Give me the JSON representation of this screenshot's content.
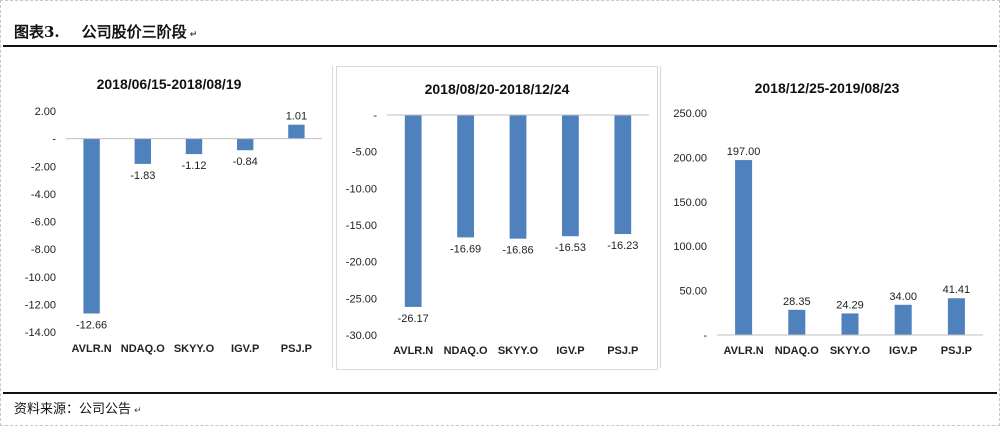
{
  "figure": {
    "number": "图表3.",
    "title": "公司股价三阶段",
    "source": "资料来源：公司公告"
  },
  "chart_data": [
    {
      "type": "bar",
      "title": "2018/06/15-2018/08/19",
      "categories": [
        "AVLR.N",
        "NDAQ.O",
        "SKYY.O",
        "IGV.P",
        "PSJ.P"
      ],
      "values": [
        -12.66,
        -1.83,
        -1.12,
        -0.84,
        1.01
      ],
      "value_labels": [
        "-12.66",
        "-1.83",
        "-1.12",
        "-0.84",
        "1.01"
      ],
      "ylim": [
        -14,
        2
      ],
      "ticks": [
        2,
        0,
        -2,
        -4,
        -6,
        -8,
        -10,
        -12,
        -14
      ],
      "tick_labels": [
        "2.00",
        "-",
        "-2.00",
        "-4.00",
        "-6.00",
        "-8.00",
        "-10.00",
        "-12.00",
        "-14.00"
      ],
      "color": "#4f81bd",
      "grid": false
    },
    {
      "type": "bar",
      "title": "2018/08/20-2018/12/24",
      "categories": [
        "AVLR.N",
        "NDAQ.O",
        "SKYY.O",
        "IGV.P",
        "PSJ.P"
      ],
      "values": [
        -26.17,
        -16.69,
        -16.86,
        -16.53,
        -16.23
      ],
      "value_labels": [
        "-26.17",
        "-16.69",
        "-16.86",
        "-16.53",
        "-16.23"
      ],
      "ylim": [
        -30,
        0
      ],
      "ticks": [
        0,
        -5,
        -10,
        -15,
        -20,
        -25,
        -30
      ],
      "tick_labels": [
        "-",
        "-5.00",
        "-10.00",
        "-15.00",
        "-20.00",
        "-25.00",
        "-30.00"
      ],
      "color": "#4f81bd",
      "grid": false
    },
    {
      "type": "bar",
      "title": "2018/12/25-2019/08/23",
      "categories": [
        "AVLR.N",
        "NDAQ.O",
        "SKYY.O",
        "IGV.P",
        "PSJ.P"
      ],
      "values": [
        197.0,
        28.35,
        24.29,
        34.0,
        41.41
      ],
      "value_labels": [
        "197.00",
        "28.35",
        "24.29",
        "34.00",
        "41.41"
      ],
      "ylim": [
        0,
        250
      ],
      "ticks": [
        250,
        200,
        150,
        100,
        50,
        0
      ],
      "tick_labels": [
        "250.00",
        "200.00",
        "150.00",
        "100.00",
        "50.00",
        "-"
      ],
      "color": "#4f81bd",
      "grid": false
    }
  ]
}
